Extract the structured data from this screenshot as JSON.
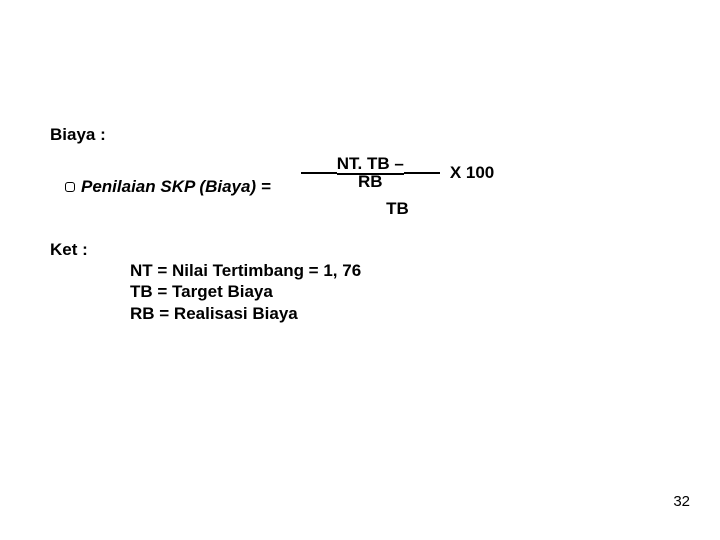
{
  "heading": "Biaya :",
  "formula": {
    "lhs": "Penilaian SKP (Biaya) =",
    "numerator_line1": "NT. TB –",
    "numerator_line2": "RB",
    "denominator": "TB",
    "multiplier": "X  100"
  },
  "ket_label": "Ket  :",
  "defs": [
    "NT = Nilai Tertimbang = 1, 76",
    "TB = Target Biaya",
    "RB = Realisasi Biaya"
  ],
  "page_number": "32",
  "colors": {
    "text": "#000",
    "bg": "#fff"
  }
}
